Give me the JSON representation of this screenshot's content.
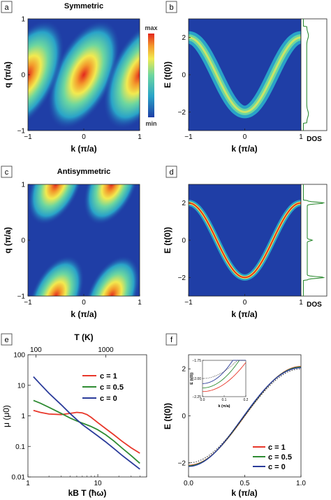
{
  "chart_data": [
    {
      "panel": "a",
      "type": "heatmap",
      "title": "Symmetric",
      "xlabel": "k (π/a)",
      "ylabel": "q (π/a)",
      "xlim": [
        -1,
        1
      ],
      "ylim": [
        -1,
        1
      ],
      "xticks": [
        "-1",
        "0",
        "1"
      ],
      "yticks": [
        "-1",
        "0",
        "1"
      ],
      "colorbar": {
        "max_label": "max",
        "min_label": "min"
      },
      "lobes": [
        {
          "k": 0.0,
          "q": 0.0
        },
        {
          "k": -1.0,
          "q": 0.0
        },
        {
          "k": 1.0,
          "q": 0.0
        }
      ]
    },
    {
      "panel": "b",
      "type": "heatmap",
      "xlabel": "k (π/a)",
      "ylabel": "E (t(0))",
      "side_label": "DOS",
      "xlim": [
        -1,
        1
      ],
      "ylim": [
        -3,
        3
      ],
      "xticks": [
        "-1",
        "0",
        "1"
      ],
      "yticks": [
        "2",
        "0",
        "-2"
      ],
      "band": {
        "form": "E = -2cos(πk)",
        "broadening": "wide"
      }
    },
    {
      "panel": "c",
      "type": "heatmap",
      "title": "Antisymmetric",
      "xlabel": "k (π/a)",
      "ylabel": "q (π/a)",
      "xlim": [
        -1,
        1
      ],
      "ylim": [
        -1,
        1
      ],
      "xticks": [
        "-1",
        "0",
        "1"
      ],
      "yticks": [
        "-1",
        "0",
        "1"
      ],
      "lobes": [
        {
          "k": -0.5,
          "q": 1.0
        },
        {
          "k": 0.5,
          "q": 1.0
        },
        {
          "k": -0.5,
          "q": -1.0
        },
        {
          "k": 0.5,
          "q": -1.0
        }
      ]
    },
    {
      "panel": "d",
      "type": "heatmap",
      "xlabel": "k (π/a)",
      "ylabel": "E (t(0))",
      "side_label": "DOS",
      "xlim": [
        -1,
        1
      ],
      "ylim": [
        -3,
        3
      ],
      "xticks": [
        "-1",
        "0",
        "1"
      ],
      "yticks": [
        "2",
        "0",
        "-2"
      ],
      "band": {
        "form": "E = -2cos(πk)",
        "broadening": "narrow"
      }
    },
    {
      "panel": "e",
      "type": "line",
      "xlabel": "kB T (ħω)",
      "ylabel": "μ (μ0)",
      "top_xlabel": "T (K)",
      "xscale": "log",
      "yscale": "log",
      "xlim": [
        1,
        50
      ],
      "ylim": [
        0.01,
        100
      ],
      "xticks": [
        "1",
        "10"
      ],
      "top_xticks": [
        "100",
        "1000"
      ],
      "yticks": [
        "100",
        "10",
        "1",
        "0.1",
        "0.01"
      ],
      "legend": "top-right",
      "series": [
        {
          "name": "c = 1",
          "color": "#e8372a",
          "x": [
            1.2,
            1.5,
            2,
            3,
            4,
            5,
            6,
            7,
            8,
            10,
            13,
            17,
            22,
            30,
            40
          ],
          "y": [
            1.5,
            1.3,
            1.15,
            1.1,
            1.2,
            1.3,
            1.25,
            1.1,
            0.9,
            0.6,
            0.38,
            0.24,
            0.15,
            0.09,
            0.06
          ]
        },
        {
          "name": "c = 0.5",
          "color": "#2e8b32",
          "x": [
            1.2,
            1.5,
            2,
            3,
            4,
            5,
            6,
            8,
            10,
            13,
            17,
            22,
            30,
            40
          ],
          "y": [
            3.2,
            2.6,
            1.9,
            1.2,
            0.85,
            0.68,
            0.58,
            0.45,
            0.35,
            0.24,
            0.15,
            0.09,
            0.05,
            0.028
          ]
        },
        {
          "name": "c = 0",
          "color": "#2a3b9a",
          "x": [
            1.2,
            1.5,
            2,
            3,
            4,
            5,
            6,
            8,
            10,
            13,
            17,
            22,
            30,
            40
          ],
          "y": [
            19,
            11,
            5.5,
            2.3,
            1.2,
            0.75,
            0.52,
            0.32,
            0.22,
            0.14,
            0.085,
            0.052,
            0.03,
            0.018
          ]
        }
      ]
    },
    {
      "panel": "f",
      "type": "line",
      "xlabel": "k (π/a)",
      "ylabel": "E (t(0))",
      "xlim": [
        0,
        1
      ],
      "ylim": [
        -2.6,
        2.6
      ],
      "xticks": [
        "0.0",
        "0.5",
        "1.0"
      ],
      "yticks": [
        "2",
        "0",
        "-2"
      ],
      "legend": "bottom-right",
      "series": [
        {
          "name": "c = 1",
          "color": "#e8372a"
        },
        {
          "name": "c = 0.5",
          "color": "#2e8b32"
        },
        {
          "name": "c = 0",
          "color": "#2a3b9a"
        }
      ],
      "inset": {
        "xlabel": "k (π/a)",
        "ylabel": "E (t(0))",
        "xlim": [
          0,
          0.2
        ],
        "ylim": [
          -2.25,
          -1.75
        ],
        "xticks": [
          "0.0",
          "0.1",
          "0.2"
        ],
        "yticks": [
          "-1.75",
          "-2.00",
          "-2.25"
        ]
      }
    }
  ]
}
